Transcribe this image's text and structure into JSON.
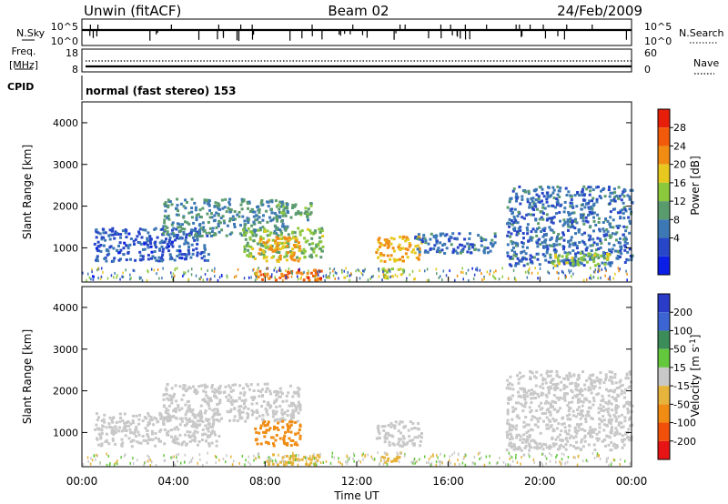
{
  "header": {
    "station": "Unwin (fitACF)",
    "beam": "Beam 02",
    "date": "24/Feb/2009"
  },
  "housekeeping": {
    "nsky_label": "N.Sky",
    "nsky_ticks": [
      "10^5",
      "10^0"
    ],
    "nsearch_label": "N.Search",
    "nsearch_ticks": [
      "10^5",
      "10^0"
    ],
    "freq_label_top": "Freq.",
    "freq_label_unit": "[MHz]",
    "freq_ticks": [
      "18",
      "8"
    ],
    "nave_label": "Nave",
    "nave_ticks": [
      "60",
      "0"
    ],
    "cpid_label": "CPID",
    "cpid_text": "normal (fast stereo) 153"
  },
  "colors": {
    "power_scale": [
      "#0a1ee6",
      "#2846c8",
      "#3c78b4",
      "#5a9b6e",
      "#8cc83c",
      "#e6c81e",
      "#f08c14",
      "#f05a0a",
      "#e61e0a"
    ],
    "velocity_scale": [
      "#2a3cc8",
      "#3c64d2",
      "#3c8c5a",
      "#64c83c",
      "#c8c8c8",
      "#e6b43c",
      "#f08c14",
      "#f0500a",
      "#e61414"
    ]
  },
  "axes": {
    "ylabel": "Slant Range [km]",
    "yticks": [
      "1000",
      "2000",
      "3000",
      "4000"
    ],
    "xticks": [
      "00:00",
      "04:00",
      "08:00",
      "12:00",
      "16:00",
      "20:00",
      "00:00"
    ],
    "xlabel": "Time UT"
  },
  "chart_data": [
    {
      "type": "heatmap",
      "title": "",
      "quantity": "Power",
      "colorbar_label": "Power [dB]",
      "colorbar_ticks": [
        "28",
        "24",
        "20",
        "16",
        "12",
        "8",
        "4"
      ],
      "colorbar_range": [
        0,
        30
      ],
      "xlabel": "",
      "ylabel": "Slant Range [km]",
      "xlim_hours": [
        0,
        24
      ],
      "ylim_km": [
        180,
        4500
      ],
      "regions": [
        {
          "t": [
            0.5,
            5.5
          ],
          "r": [
            700,
            1500
          ],
          "value": 6
        },
        {
          "t": [
            3.5,
            9.0
          ],
          "r": [
            1300,
            2200
          ],
          "value": 10
        },
        {
          "t": [
            7.0,
            10.5
          ],
          "r": [
            800,
            1500
          ],
          "value": 14
        },
        {
          "t": [
            7.5,
            9.5
          ],
          "r": [
            700,
            1300
          ],
          "value": 20
        },
        {
          "t": [
            7.5,
            10.5
          ],
          "r": [
            250,
            500
          ],
          "value": 24
        },
        {
          "t": [
            8.5,
            10.0
          ],
          "r": [
            1700,
            2100
          ],
          "value": 12
        },
        {
          "t": [
            12.8,
            14.8
          ],
          "r": [
            700,
            1300
          ],
          "value": 20
        },
        {
          "t": [
            13.0,
            14.0
          ],
          "r": [
            300,
            550
          ],
          "value": 16
        },
        {
          "t": [
            14.5,
            18.0
          ],
          "r": [
            900,
            1400
          ],
          "value": 8
        },
        {
          "t": [
            18.5,
            24.0
          ],
          "r": [
            600,
            2500
          ],
          "value": 8
        },
        {
          "t": [
            20.5,
            23.0
          ],
          "r": [
            600,
            900
          ],
          "value": 16
        }
      ]
    },
    {
      "type": "heatmap",
      "title": "",
      "quantity": "Velocity",
      "colorbar_label": "Velocity [m s^-1]",
      "colorbar_ticks": [
        "200",
        "100",
        "50",
        "15",
        "-15",
        "-50",
        "-100",
        "-200"
      ],
      "colorbar_range": [
        -250,
        250
      ],
      "xlabel": "Time UT",
      "ylabel": "Slant Range [km]",
      "xlim_hours": [
        0,
        24
      ],
      "ylim_km": [
        180,
        4500
      ],
      "regions": [
        {
          "t": [
            0.5,
            6.0
          ],
          "r": [
            700,
            1500
          ],
          "value": 0
        },
        {
          "t": [
            3.5,
            9.5
          ],
          "r": [
            1300,
            2200
          ],
          "value": 0
        },
        {
          "t": [
            7.5,
            9.5
          ],
          "r": [
            700,
            1300
          ],
          "value": -120
        },
        {
          "t": [
            8.0,
            10.5
          ],
          "r": [
            250,
            500
          ],
          "value": -60
        },
        {
          "t": [
            12.8,
            14.8
          ],
          "r": [
            700,
            1300
          ],
          "value": 0
        },
        {
          "t": [
            13.0,
            14.0
          ],
          "r": [
            300,
            550
          ],
          "value": -60
        },
        {
          "t": [
            18.5,
            24.0
          ],
          "r": [
            600,
            2500
          ],
          "value": 0
        }
      ]
    }
  ]
}
